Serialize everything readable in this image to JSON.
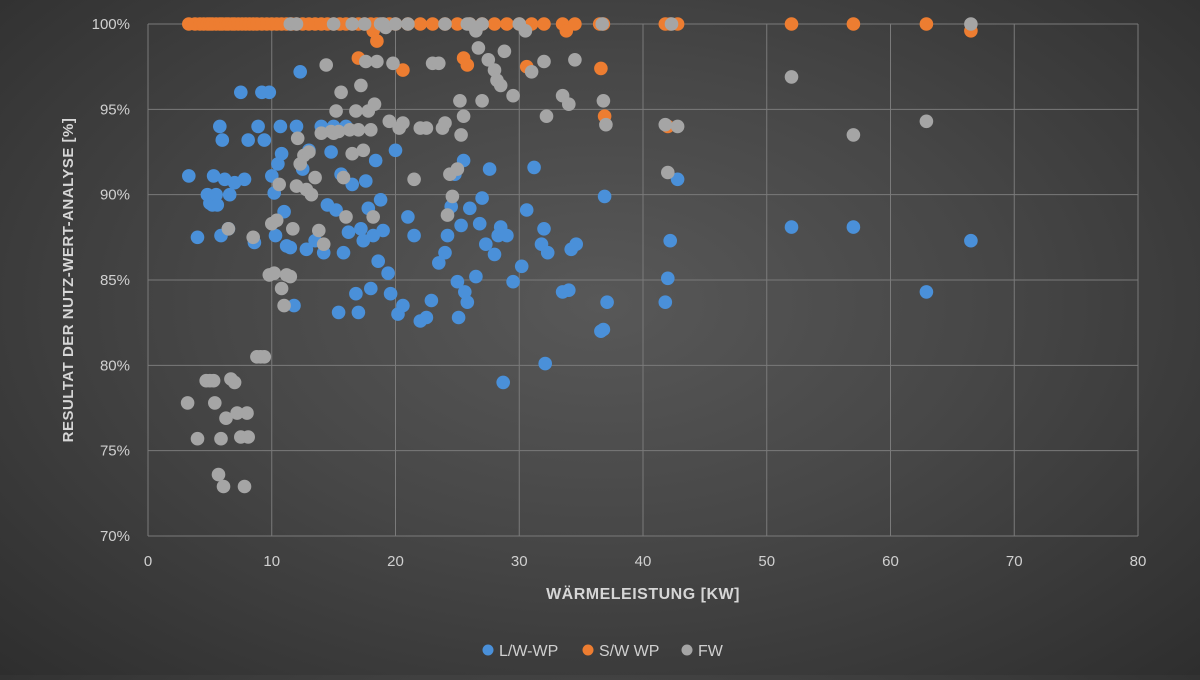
{
  "chart_data": {
    "type": "scatter",
    "xlabel": "WÄRMELEISTUNG [KW]",
    "ylabel": "RESULTAT DER NUTZ-WERT-ANALYSE [%]",
    "xlim": [
      0,
      80
    ],
    "ylim": [
      70,
      100
    ],
    "x_ticks": [
      "0",
      "10",
      "20",
      "30",
      "40",
      "50",
      "60",
      "70",
      "80"
    ],
    "y_ticks": [
      "70%",
      "75%",
      "80%",
      "85%",
      "90%",
      "95%",
      "100%"
    ],
    "grid": true,
    "legend_position": "bottom",
    "series": [
      {
        "name": "L/W-WP",
        "color": "#4a90d9",
        "points": [
          [
            3.3,
            91.1
          ],
          [
            4.0,
            87.5
          ],
          [
            4.8,
            90.0
          ],
          [
            5.0,
            89.5
          ],
          [
            5.2,
            89.4
          ],
          [
            5.3,
            91.1
          ],
          [
            5.5,
            90.0
          ],
          [
            5.6,
            89.4
          ],
          [
            5.8,
            94.0
          ],
          [
            5.9,
            87.6
          ],
          [
            6.0,
            93.2
          ],
          [
            6.2,
            90.9
          ],
          [
            6.5,
            88.0
          ],
          [
            6.6,
            90.0
          ],
          [
            7.0,
            90.7
          ],
          [
            7.5,
            96.0
          ],
          [
            7.8,
            90.9
          ],
          [
            8.1,
            93.2
          ],
          [
            8.6,
            87.2
          ],
          [
            8.9,
            94.0
          ],
          [
            9.2,
            96.0
          ],
          [
            9.4,
            93.2
          ],
          [
            9.8,
            96.0
          ],
          [
            10.0,
            91.1
          ],
          [
            10.2,
            90.1
          ],
          [
            10.3,
            87.6
          ],
          [
            10.5,
            91.8
          ],
          [
            10.7,
            94.0
          ],
          [
            10.8,
            92.4
          ],
          [
            11.0,
            89.0
          ],
          [
            11.2,
            87.0
          ],
          [
            11.5,
            86.9
          ],
          [
            11.8,
            83.5
          ],
          [
            12.0,
            94.0
          ],
          [
            12.3,
            97.2
          ],
          [
            12.5,
            91.5
          ],
          [
            12.8,
            86.8
          ],
          [
            13.0,
            92.6
          ],
          [
            13.5,
            87.3
          ],
          [
            14.0,
            94.0
          ],
          [
            14.2,
            86.6
          ],
          [
            14.5,
            89.4
          ],
          [
            14.8,
            92.5
          ],
          [
            15.0,
            94.0
          ],
          [
            15.2,
            89.1
          ],
          [
            15.4,
            83.1
          ],
          [
            15.6,
            91.2
          ],
          [
            15.8,
            86.6
          ],
          [
            16.0,
            94.0
          ],
          [
            16.2,
            87.8
          ],
          [
            16.5,
            90.6
          ],
          [
            16.8,
            84.2
          ],
          [
            17.0,
            83.1
          ],
          [
            17.2,
            88.0
          ],
          [
            17.4,
            87.3
          ],
          [
            17.6,
            90.8
          ],
          [
            17.8,
            89.2
          ],
          [
            18.0,
            84.5
          ],
          [
            18.2,
            87.6
          ],
          [
            18.4,
            92.0
          ],
          [
            18.6,
            86.1
          ],
          [
            18.8,
            89.7
          ],
          [
            19.0,
            87.9
          ],
          [
            19.4,
            85.4
          ],
          [
            19.6,
            84.2
          ],
          [
            20.0,
            92.6
          ],
          [
            20.2,
            83.0
          ],
          [
            20.6,
            83.5
          ],
          [
            21.0,
            88.7
          ],
          [
            21.5,
            87.6
          ],
          [
            22.0,
            82.6
          ],
          [
            22.5,
            82.8
          ],
          [
            22.9,
            83.8
          ],
          [
            23.5,
            86.0
          ],
          [
            24.0,
            86.6
          ],
          [
            24.2,
            87.6
          ],
          [
            24.5,
            89.3
          ],
          [
            24.8,
            91.2
          ],
          [
            25.0,
            84.9
          ],
          [
            25.1,
            82.8
          ],
          [
            25.3,
            88.2
          ],
          [
            25.5,
            92.0
          ],
          [
            25.6,
            84.3
          ],
          [
            25.8,
            83.7
          ],
          [
            26.0,
            89.2
          ],
          [
            26.5,
            85.2
          ],
          [
            26.8,
            88.3
          ],
          [
            27.0,
            89.8
          ],
          [
            27.3,
            87.1
          ],
          [
            27.6,
            91.5
          ],
          [
            28.0,
            86.5
          ],
          [
            28.3,
            87.6
          ],
          [
            28.5,
            88.1
          ],
          [
            28.7,
            79.0
          ],
          [
            29.0,
            87.6
          ],
          [
            29.5,
            84.9
          ],
          [
            30.2,
            85.8
          ],
          [
            30.6,
            89.1
          ],
          [
            31.2,
            91.6
          ],
          [
            31.8,
            87.1
          ],
          [
            32.0,
            88.0
          ],
          [
            32.1,
            80.1
          ],
          [
            32.3,
            86.6
          ],
          [
            33.5,
            84.3
          ],
          [
            34.0,
            84.4
          ],
          [
            34.2,
            86.8
          ],
          [
            34.6,
            87.1
          ],
          [
            36.6,
            82.0
          ],
          [
            36.8,
            82.1
          ],
          [
            36.9,
            89.9
          ],
          [
            37.1,
            83.7
          ],
          [
            41.8,
            83.7
          ],
          [
            42.0,
            85.1
          ],
          [
            42.2,
            87.3
          ],
          [
            42.8,
            90.9
          ],
          [
            52.0,
            88.1
          ],
          [
            57.0,
            88.1
          ],
          [
            62.9,
            84.3
          ],
          [
            66.5,
            87.3
          ]
        ]
      },
      {
        "name": "S/W WP",
        "color": "#ed7d31",
        "points": [
          [
            3.3,
            100
          ],
          [
            3.8,
            100
          ],
          [
            4.2,
            100
          ],
          [
            4.5,
            100
          ],
          [
            4.8,
            100
          ],
          [
            5.0,
            100
          ],
          [
            5.2,
            100
          ],
          [
            5.5,
            100
          ],
          [
            5.8,
            100
          ],
          [
            6.0,
            100
          ],
          [
            6.3,
            100
          ],
          [
            6.5,
            100
          ],
          [
            6.8,
            100
          ],
          [
            7.0,
            100
          ],
          [
            7.3,
            100
          ],
          [
            7.6,
            100
          ],
          [
            7.9,
            100
          ],
          [
            8.2,
            100
          ],
          [
            8.5,
            100
          ],
          [
            8.8,
            100
          ],
          [
            9.2,
            100
          ],
          [
            9.6,
            100
          ],
          [
            10.0,
            100
          ],
          [
            10.4,
            100
          ],
          [
            10.8,
            100
          ],
          [
            11.2,
            100
          ],
          [
            11.6,
            100
          ],
          [
            12.0,
            100
          ],
          [
            12.5,
            100
          ],
          [
            13.0,
            100
          ],
          [
            13.5,
            100
          ],
          [
            14.0,
            100
          ],
          [
            14.5,
            100
          ],
          [
            15.0,
            100
          ],
          [
            15.5,
            100
          ],
          [
            16.0,
            100
          ],
          [
            16.5,
            100
          ],
          [
            17.0,
            100
          ],
          [
            17.5,
            100
          ],
          [
            18.0,
            100
          ],
          [
            18.5,
            100
          ],
          [
            19.0,
            100
          ],
          [
            19.5,
            100
          ],
          [
            20.0,
            100
          ],
          [
            21.0,
            100
          ],
          [
            22.0,
            100
          ],
          [
            23.0,
            100
          ],
          [
            24.0,
            100
          ],
          [
            25.0,
            100
          ],
          [
            26.0,
            100
          ],
          [
            27.0,
            100
          ],
          [
            28.0,
            100
          ],
          [
            29.0,
            100
          ],
          [
            30.0,
            100
          ],
          [
            31.0,
            100
          ],
          [
            32.0,
            100
          ],
          [
            33.5,
            100
          ],
          [
            34.5,
            100
          ],
          [
            36.5,
            100
          ],
          [
            36.8,
            100
          ],
          [
            41.8,
            100
          ],
          [
            42.2,
            100
          ],
          [
            42.8,
            100
          ],
          [
            52.0,
            100
          ],
          [
            57.0,
            100
          ],
          [
            62.9,
            100
          ],
          [
            66.5,
            99.6
          ],
          [
            17.0,
            98.0
          ],
          [
            18.2,
            99.6
          ],
          [
            18.5,
            99.0
          ],
          [
            20.6,
            97.3
          ],
          [
            25.5,
            98.0
          ],
          [
            25.8,
            97.6
          ],
          [
            30.6,
            97.5
          ],
          [
            33.8,
            99.6
          ],
          [
            36.6,
            97.4
          ],
          [
            36.9,
            94.6
          ],
          [
            42.0,
            94.0
          ]
        ]
      },
      {
        "name": "FW",
        "color": "#a5a5a5",
        "points": [
          [
            3.2,
            77.8
          ],
          [
            4.0,
            75.7
          ],
          [
            4.7,
            79.1
          ],
          [
            5.0,
            79.1
          ],
          [
            5.3,
            79.1
          ],
          [
            5.4,
            77.8
          ],
          [
            5.7,
            73.6
          ],
          [
            5.9,
            75.7
          ],
          [
            6.1,
            72.9
          ],
          [
            6.3,
            76.9
          ],
          [
            6.5,
            88.0
          ],
          [
            6.7,
            79.2
          ],
          [
            7.0,
            79.0
          ],
          [
            7.2,
            77.2
          ],
          [
            7.5,
            75.8
          ],
          [
            7.8,
            72.9
          ],
          [
            8.0,
            77.2
          ],
          [
            8.1,
            75.8
          ],
          [
            8.5,
            87.5
          ],
          [
            8.8,
            80.5
          ],
          [
            9.1,
            80.5
          ],
          [
            9.4,
            80.5
          ],
          [
            9.8,
            85.3
          ],
          [
            10.0,
            88.3
          ],
          [
            10.2,
            85.4
          ],
          [
            10.4,
            88.5
          ],
          [
            10.6,
            90.6
          ],
          [
            10.8,
            84.5
          ],
          [
            11.0,
            83.5
          ],
          [
            11.2,
            85.3
          ],
          [
            11.5,
            85.2
          ],
          [
            11.7,
            88.0
          ],
          [
            12.0,
            90.5
          ],
          [
            12.1,
            93.3
          ],
          [
            12.3,
            91.8
          ],
          [
            12.6,
            92.3
          ],
          [
            12.8,
            90.3
          ],
          [
            13.0,
            92.5
          ],
          [
            13.2,
            90.0
          ],
          [
            13.5,
            91.0
          ],
          [
            13.8,
            87.9
          ],
          [
            14.0,
            93.6
          ],
          [
            14.2,
            87.1
          ],
          [
            14.4,
            97.6
          ],
          [
            14.8,
            93.7
          ],
          [
            15.0,
            93.6
          ],
          [
            15.2,
            94.9
          ],
          [
            15.4,
            93.7
          ],
          [
            15.6,
            96.0
          ],
          [
            15.8,
            91.0
          ],
          [
            16.0,
            88.7
          ],
          [
            16.3,
            93.8
          ],
          [
            16.5,
            92.4
          ],
          [
            16.8,
            94.9
          ],
          [
            17.0,
            93.8
          ],
          [
            17.2,
            96.4
          ],
          [
            17.4,
            92.6
          ],
          [
            17.6,
            97.8
          ],
          [
            17.8,
            94.9
          ],
          [
            18.0,
            93.8
          ],
          [
            18.2,
            88.7
          ],
          [
            18.3,
            95.3
          ],
          [
            18.5,
            97.8
          ],
          [
            18.8,
            100
          ],
          [
            19.0,
            100
          ],
          [
            19.2,
            99.8
          ],
          [
            19.5,
            94.3
          ],
          [
            19.8,
            97.7
          ],
          [
            20.0,
            100
          ],
          [
            20.3,
            93.9
          ],
          [
            20.6,
            94.2
          ],
          [
            21.0,
            100
          ],
          [
            21.5,
            90.9
          ],
          [
            22.0,
            93.9
          ],
          [
            22.5,
            93.9
          ],
          [
            23.0,
            97.7
          ],
          [
            23.5,
            97.7
          ],
          [
            23.8,
            93.9
          ],
          [
            24.0,
            94.2
          ],
          [
            24.2,
            88.8
          ],
          [
            24.4,
            91.2
          ],
          [
            24.6,
            89.9
          ],
          [
            25.0,
            91.5
          ],
          [
            25.2,
            95.5
          ],
          [
            25.3,
            93.5
          ],
          [
            25.5,
            94.6
          ],
          [
            25.8,
            100
          ],
          [
            26.0,
            100
          ],
          [
            26.5,
            99.6
          ],
          [
            26.7,
            98.6
          ],
          [
            27.0,
            95.5
          ],
          [
            27.5,
            97.9
          ],
          [
            28.0,
            97.3
          ],
          [
            28.2,
            96.7
          ],
          [
            28.5,
            96.4
          ],
          [
            28.8,
            98.4
          ],
          [
            29.5,
            95.8
          ],
          [
            30.0,
            100
          ],
          [
            30.5,
            99.6
          ],
          [
            31.0,
            97.2
          ],
          [
            32.0,
            97.8
          ],
          [
            32.2,
            94.6
          ],
          [
            33.5,
            95.8
          ],
          [
            34.0,
            95.3
          ],
          [
            34.5,
            97.9
          ],
          [
            36.7,
            100
          ],
          [
            36.8,
            95.5
          ],
          [
            37.0,
            94.1
          ],
          [
            41.8,
            94.1
          ],
          [
            42.0,
            91.3
          ],
          [
            42.3,
            100
          ],
          [
            42.8,
            94.0
          ],
          [
            52.0,
            96.9
          ],
          [
            57.0,
            93.5
          ],
          [
            62.9,
            94.3
          ],
          [
            66.5,
            100
          ],
          [
            11.5,
            100
          ],
          [
            12.0,
            100
          ],
          [
            15.0,
            100
          ],
          [
            16.5,
            100
          ],
          [
            17.5,
            100
          ],
          [
            24.0,
            100
          ],
          [
            27.0,
            100
          ]
        ]
      }
    ]
  }
}
